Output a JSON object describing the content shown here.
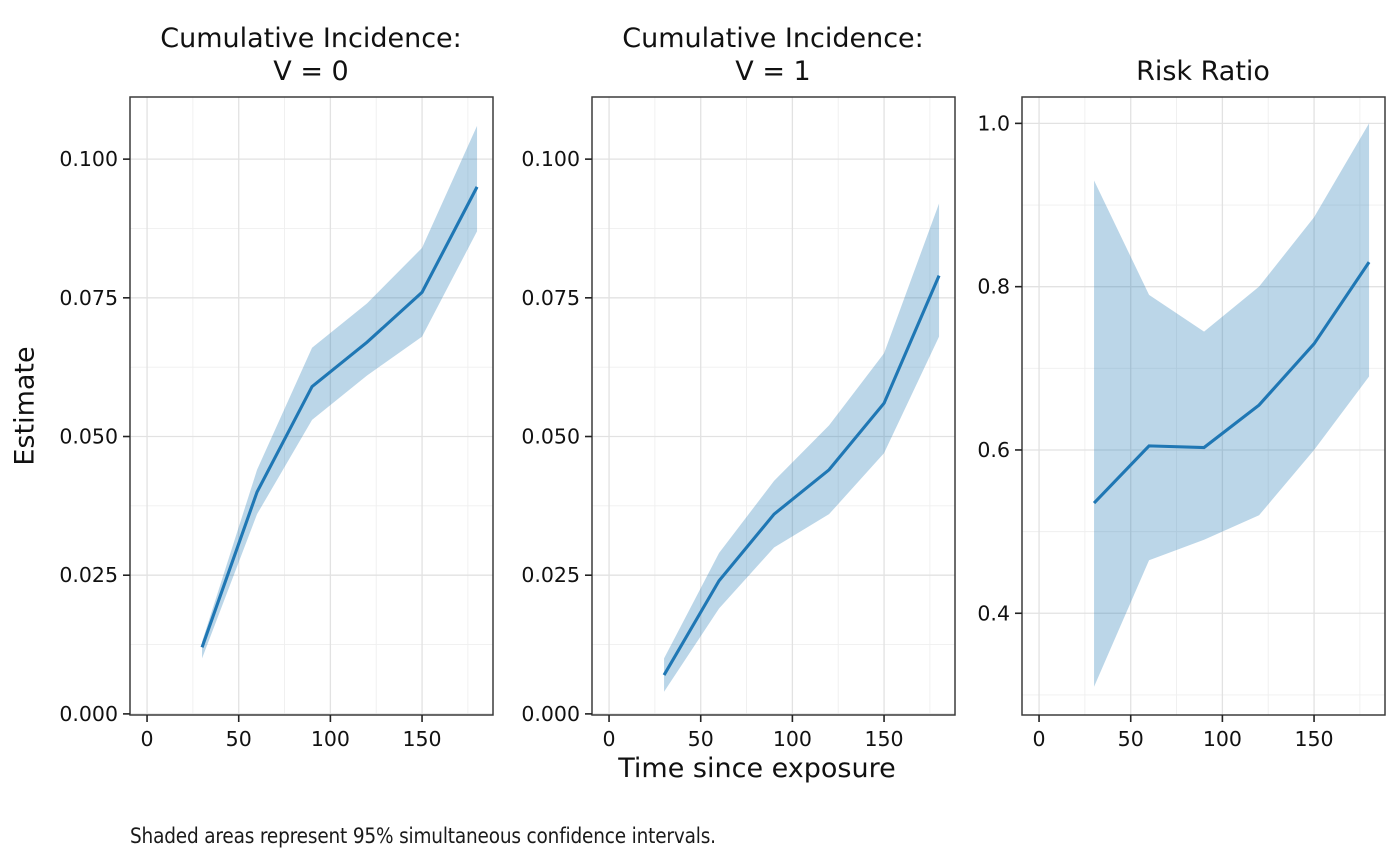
{
  "figure": {
    "x_axis_label": "Time since exposure",
    "y_axis_label": "Estimate",
    "caption": "Shaded areas represent 95% simultaneous confidence intervals."
  },
  "colors": {
    "line": "#1f77b4",
    "band_fill": "#1f77b4",
    "band_opacity": 0.3,
    "grid_major": "#e2e2e2",
    "grid_minor": "#efefef",
    "panel_border": "#3c3c3c",
    "tick_mark": "#222222",
    "tick_label": "#111111",
    "panel_bg": "#ffffff"
  },
  "chart_data": [
    {
      "type": "line",
      "title": "Cumulative Incidence: V = 0",
      "title_lines": [
        "Cumulative Incidence:",
        "V = 0"
      ],
      "band_meaning": "95% simultaneous confidence interval",
      "x": [
        30,
        60,
        90,
        120,
        150,
        180
      ],
      "estimate": [
        0.012,
        0.04,
        0.059,
        0.067,
        0.076,
        0.095
      ],
      "ci_lower": [
        0.01,
        0.036,
        0.053,
        0.061,
        0.068,
        0.087
      ],
      "ci_upper": [
        0.013,
        0.044,
        0.066,
        0.074,
        0.084,
        0.106
      ],
      "xlim": [
        -9.3,
        188.7
      ],
      "ylim": [
        -0.0002,
        0.1112
      ],
      "xticks": {
        "values": [
          0,
          50,
          100,
          150
        ],
        "labels": [
          "0",
          "50",
          "100",
          "150"
        ],
        "minor": [
          25,
          75,
          125,
          175
        ]
      },
      "yticks": {
        "values": [
          0.0,
          0.025,
          0.05,
          0.075,
          0.1
        ],
        "labels": [
          "0.000",
          "0.025",
          "0.050",
          "0.075",
          "0.100"
        ],
        "minor": [
          0.0125,
          0.0375,
          0.0625,
          0.0875
        ]
      },
      "grid": true
    },
    {
      "type": "line",
      "title": "Cumulative Incidence: V = 1",
      "title_lines": [
        "Cumulative Incidence:",
        "V = 1"
      ],
      "band_meaning": "95% simultaneous confidence interval",
      "x": [
        30,
        60,
        90,
        120,
        150,
        180
      ],
      "estimate": [
        0.007,
        0.024,
        0.036,
        0.044,
        0.056,
        0.079
      ],
      "ci_lower": [
        0.004,
        0.019,
        0.03,
        0.036,
        0.047,
        0.068
      ],
      "ci_upper": [
        0.01,
        0.029,
        0.042,
        0.052,
        0.065,
        0.092
      ],
      "xlim": [
        -9.3,
        188.7
      ],
      "ylim": [
        -0.0002,
        0.1112
      ],
      "xticks": {
        "values": [
          0,
          50,
          100,
          150
        ],
        "labels": [
          "0",
          "50",
          "100",
          "150"
        ],
        "minor": [
          25,
          75,
          125,
          175
        ]
      },
      "yticks": {
        "values": [
          0.0,
          0.025,
          0.05,
          0.075,
          0.1
        ],
        "labels": [
          "0.000",
          "0.025",
          "0.050",
          "0.075",
          "0.100"
        ],
        "minor": [
          0.0125,
          0.0375,
          0.0625,
          0.0875
        ]
      },
      "grid": true
    },
    {
      "type": "line",
      "title": "Risk Ratio",
      "title_lines": [
        "Risk Ratio"
      ],
      "band_meaning": "95% simultaneous confidence interval",
      "x": [
        30,
        60,
        90,
        120,
        150,
        180
      ],
      "estimate": [
        0.535,
        0.605,
        0.603,
        0.655,
        0.73,
        0.83
      ],
      "ci_lower": [
        0.31,
        0.465,
        0.49,
        0.52,
        0.6,
        0.69
      ],
      "ci_upper": [
        0.93,
        0.79,
        0.745,
        0.8,
        0.885,
        1.0
      ],
      "xlim": [
        -9.3,
        188.7
      ],
      "ylim": [
        0.2754,
        1.0323
      ],
      "xticks": {
        "values": [
          0,
          50,
          100,
          150
        ],
        "labels": [
          "0",
          "50",
          "100",
          "150"
        ],
        "minor": [
          25,
          75,
          125,
          175
        ]
      },
      "yticks": {
        "values": [
          0.4,
          0.6,
          0.8,
          1.0
        ],
        "labels": [
          "0.4",
          "0.6",
          "0.8",
          "1.0"
        ],
        "minor": [
          0.3,
          0.5,
          0.7,
          0.9
        ]
      },
      "grid": true
    }
  ]
}
